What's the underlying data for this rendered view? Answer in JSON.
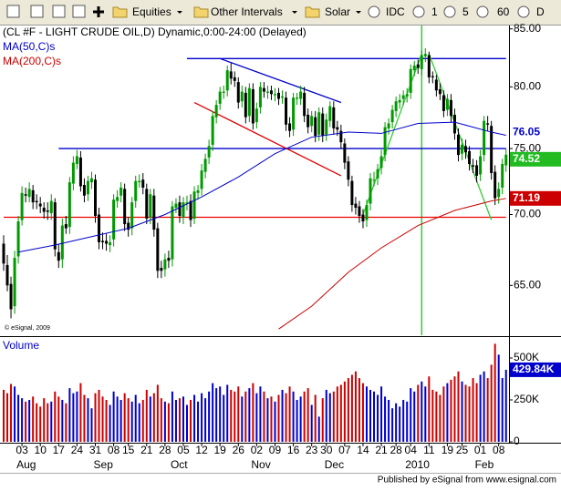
{
  "toolbar": {
    "items": [
      "Equities",
      "Other Intervals",
      "Solar",
      "IDC",
      "1",
      "5",
      "60",
      "D"
    ]
  },
  "footer": "Published by eSignal from www.esignal.com",
  "chart_data": {
    "type": "candlestick",
    "title": "(CL #F - LIGHT CRUDE OIL,D) Dynamic,0:00-24:00 (Delayed)",
    "copyright": "© eSignal, 2009",
    "log": true,
    "grid": false,
    "up_color": "#009900",
    "down_color": "#000000",
    "last_color": "#22bb22",
    "ylim": [
      61.7,
      85.3
    ],
    "yticks": [
      {
        "value": 85,
        "label": "85.00"
      },
      {
        "value": 80,
        "label": "80.00"
      },
      {
        "value": 75,
        "label": "75.00"
      },
      {
        "value": 70,
        "label": "70.00"
      },
      {
        "value": 65,
        "label": "65.00"
      }
    ],
    "categories": [
      null,
      null,
      null,
      null,
      null,
      "03",
      null,
      null,
      null,
      null,
      "10",
      null,
      null,
      null,
      null,
      "17",
      null,
      null,
      null,
      null,
      "24",
      null,
      null,
      null,
      null,
      "31",
      null,
      null,
      null,
      null,
      "08",
      null,
      null,
      null,
      "15",
      null,
      null,
      null,
      null,
      "21",
      null,
      null,
      null,
      null,
      "28",
      null,
      null,
      null,
      null,
      "05",
      null,
      null,
      null,
      null,
      "12",
      null,
      null,
      null,
      null,
      "19",
      null,
      null,
      null,
      null,
      "26",
      null,
      null,
      null,
      null,
      "02",
      null,
      null,
      null,
      null,
      "09",
      null,
      null,
      null,
      null,
      "16",
      null,
      null,
      null,
      null,
      "23",
      null,
      null,
      null,
      "30",
      null,
      null,
      null,
      null,
      "07",
      null,
      null,
      null,
      null,
      "14",
      null,
      null,
      null,
      null,
      "21",
      null,
      null,
      null,
      "28",
      null,
      null,
      null,
      "04",
      null,
      null,
      null,
      null,
      "11",
      null,
      null,
      null,
      null,
      "19",
      null,
      null,
      null,
      "25",
      null,
      null,
      null,
      null,
      "01",
      null,
      null,
      null,
      null,
      "08",
      null,
      null
    ],
    "months": [
      {
        "label": "Aug",
        "index": 5
      },
      {
        "label": "Sep",
        "index": 26
      },
      {
        "label": "Oct",
        "index": 47
      },
      {
        "label": "Nov",
        "index": 69
      },
      {
        "label": "Dec",
        "index": 89
      },
      {
        "label": "2010",
        "index": 111
      },
      {
        "label": "Feb",
        "index": 130
      }
    ],
    "open": [
      67.9,
      66.4,
      65.1,
      63.6,
      67.0,
      69.6,
      71.5,
      71.3,
      71.8,
      71.0,
      70.8,
      70.5,
      70.3,
      70.1,
      70.9,
      67.3,
      66.8,
      69.3,
      69.1,
      72.3,
      73.8,
      74.3,
      72.2,
      71.5,
      72.4,
      72.6,
      70.0,
      68.1,
      68.1,
      67.8,
      68.2,
      71.0,
      71.4,
      71.9,
      69.4,
      69.0,
      71.0,
      72.4,
      72.6,
      71.9,
      69.8,
      71.4,
      69.0,
      66.2,
      66.1,
      66.9,
      66.8,
      70.5,
      70.9,
      69.8,
      70.8,
      71.0,
      69.7,
      71.6,
      71.9,
      73.2,
      74.3,
      75.3,
      77.5,
      78.6,
      79.5,
      79.7,
      81.3,
      80.8,
      80.4,
      78.8,
      79.5,
      77.6,
      79.8,
      77.1,
      78.3,
      79.9,
      79.5,
      79.7,
      79.3,
      79.5,
      79.1,
      79.1,
      77.0,
      76.5,
      79.0,
      79.0,
      79.5,
      77.7,
      76.8,
      77.5,
      76.1,
      77.8,
      76.1,
      77.2,
      78.3,
      76.7,
      76.4,
      75.4,
      74.0,
      72.5,
      70.8,
      70.6,
      70.0,
      69.6,
      70.8,
      72.6,
      72.7,
      73.5,
      74.5,
      76.6,
      77.1,
      78.0,
      78.7,
      79.0,
      79.2,
      79.5,
      81.4,
      81.9,
      81.5,
      82.6,
      82.7,
      80.9,
      80.6,
      79.8,
      79.3,
      78.1,
      78.9,
      77.7,
      76.1,
      74.6,
      75.2,
      74.8,
      73.7,
      73.7,
      73.0,
      74.5,
      77.0,
      76.8,
      73.2,
      71.3,
      72.0,
      73.7
    ],
    "high": [
      68.5,
      67.1,
      65.6,
      67.4,
      69.9,
      72.1,
      72.0,
      72.4,
      72.2,
      71.5,
      71.3,
      70.9,
      70.9,
      71.5,
      71.2,
      67.9,
      69.7,
      69.9,
      72.8,
      74.4,
      74.9,
      74.8,
      72.7,
      72.9,
      73.2,
      73.0,
      70.5,
      68.7,
      68.6,
      68.5,
      71.5,
      71.8,
      72.4,
      72.3,
      69.8,
      71.3,
      72.9,
      73.0,
      73.1,
      72.3,
      71.9,
      71.9,
      69.4,
      66.7,
      67.2,
      67.4,
      71.0,
      71.2,
      71.4,
      71.3,
      71.4,
      71.5,
      72.1,
      72.2,
      73.8,
      74.6,
      75.7,
      78.0,
      78.9,
      80.0,
      80.1,
      81.8,
      82.0,
      81.3,
      80.8,
      80.1,
      80.0,
      80.3,
      80.3,
      78.7,
      80.4,
      80.4,
      80.1,
      80.1,
      79.9,
      79.9,
      79.7,
      79.6,
      77.5,
      79.5,
      79.5,
      80.1,
      80.0,
      78.2,
      78.0,
      78.0,
      78.3,
      78.3,
      77.8,
      78.8,
      78.8,
      77.2,
      76.9,
      75.8,
      74.4,
      72.9,
      71.3,
      71.0,
      70.4,
      71.1,
      73.1,
      73.2,
      73.8,
      74.9,
      77.1,
      77.4,
      78.5,
      79.2,
      79.4,
      79.7,
      79.9,
      81.9,
      82.2,
      82.3,
      83.1,
      83.3,
      83.0,
      81.3,
      81.0,
      80.3,
      79.7,
      79.4,
      79.4,
      78.2,
      76.6,
      75.8,
      75.7,
      75.2,
      74.2,
      74.1,
      74.9,
      77.6,
      77.6,
      77.2,
      73.7,
      72.4,
      74.2,
      75.0
    ],
    "low": [
      66.0,
      64.6,
      62.8,
      63.1,
      66.5,
      69.2,
      70.9,
      70.9,
      70.4,
      70.4,
      70.1,
      69.7,
      69.6,
      69.6,
      67.0,
      66.2,
      66.2,
      68.6,
      68.6,
      71.8,
      73.4,
      71.7,
      70.9,
      71.0,
      71.9,
      69.4,
      67.5,
      67.5,
      67.4,
      67.3,
      67.7,
      70.5,
      70.9,
      68.8,
      68.4,
      68.5,
      70.5,
      72.0,
      71.5,
      69.3,
      69.3,
      68.4,
      65.5,
      65.5,
      65.6,
      66.2,
      66.3,
      70.1,
      69.4,
      69.3,
      70.3,
      69.1,
      69.3,
      71.1,
      71.4,
      72.7,
      73.8,
      74.8,
      77.0,
      78.1,
      79.0,
      79.2,
      80.2,
      80.0,
      78.2,
      78.3,
      77.0,
      77.1,
      76.5,
      76.6,
      77.8,
      79.1,
      79.0,
      78.9,
      78.8,
      78.5,
      78.6,
      76.4,
      75.9,
      76.0,
      78.5,
      78.5,
      77.1,
      76.2,
      76.3,
      75.5,
      75.6,
      75.5,
      75.6,
      76.7,
      76.1,
      76.0,
      75.0,
      73.4,
      72.1,
      70.2,
      70.0,
      69.4,
      69.0,
      69.1,
      70.3,
      72.1,
      72.2,
      73.0,
      74.0,
      76.1,
      76.6,
      77.5,
      78.2,
      78.5,
      78.7,
      79.0,
      80.9,
      81.1,
      81.0,
      82.1,
      80.3,
      80.3,
      79.2,
      78.9,
      77.5,
      77.6,
      77.1,
      75.7,
      74.0,
      74.1,
      74.2,
      73.3,
      73.1,
      72.4,
      72.5,
      74.0,
      76.4,
      72.6,
      70.7,
      70.8,
      71.5,
      73.2
    ],
    "close": [
      66.5,
      65.0,
      63.4,
      66.9,
      69.5,
      71.6,
      71.4,
      71.9,
      70.9,
      70.9,
      70.6,
      70.2,
      70.2,
      71.0,
      67.5,
      66.7,
      69.2,
      69.0,
      72.4,
      73.9,
      74.4,
      72.1,
      71.4,
      72.5,
      72.7,
      69.9,
      68.0,
      68.0,
      67.9,
      68.0,
      71.1,
      71.3,
      72.0,
      69.3,
      68.9,
      70.9,
      72.5,
      72.5,
      72.0,
      69.7,
      71.5,
      68.9,
      66.0,
      66.0,
      66.8,
      66.7,
      70.6,
      70.8,
      69.9,
      70.9,
      70.9,
      69.6,
      71.7,
      71.8,
      73.3,
      74.2,
      75.2,
      77.6,
      78.5,
      79.6,
      79.6,
      81.4,
      80.7,
      80.5,
      78.7,
      79.6,
      77.5,
      79.9,
      77.0,
      78.2,
      80.0,
      79.6,
      79.6,
      79.4,
      79.4,
      79.0,
      79.2,
      76.9,
      76.4,
      79.1,
      79.1,
      79.6,
      77.6,
      76.7,
      77.6,
      76.0,
      77.9,
      76.0,
      77.3,
      78.4,
      76.6,
      76.5,
      75.5,
      73.9,
      72.6,
      70.7,
      70.5,
      69.9,
      69.5,
      70.7,
      72.7,
      72.6,
      73.4,
      74.4,
      76.7,
      77.0,
      78.1,
      78.8,
      78.9,
      79.3,
      79.4,
      81.5,
      81.8,
      81.6,
      82.7,
      82.8,
      80.8,
      80.8,
      79.7,
      79.4,
      78.0,
      79.0,
      77.6,
      76.2,
      74.5,
      75.3,
      74.7,
      73.8,
      73.6,
      72.9,
      74.4,
      77.2,
      76.9,
      73.1,
      71.2,
      71.9,
      73.8,
      74.52
    ],
    "series": [
      {
        "name": "MA(50,C)s",
        "color": "#0000cc",
        "x": [
          4,
          14,
          24,
          34,
          44,
          54,
          64,
          74,
          84,
          94,
          103,
          113,
          123,
          133,
          137
        ],
        "values": [
          67.3,
          67.8,
          68.4,
          69.0,
          70.0,
          71.3,
          72.8,
          74.6,
          75.9,
          76.3,
          76.2,
          77.0,
          77.1,
          76.3,
          76.05
        ]
      },
      {
        "name": "MA(200,C)s",
        "color": "#cc0000",
        "x": [
          75,
          84,
          94,
          103,
          113,
          123,
          133,
          137
        ],
        "values": [
          62.1,
          63.6,
          65.9,
          67.6,
          69.2,
          70.3,
          71.0,
          71.19
        ]
      }
    ],
    "drawings": [
      {
        "color": "#0000cc",
        "x": [
          50,
          137
        ],
        "y": [
          82.4,
          82.4
        ]
      },
      {
        "color": "#0000cc",
        "x": [
          15,
          137
        ],
        "y": [
          75.0,
          75.0
        ]
      },
      {
        "color": "#ee0000",
        "x": [
          0,
          137
        ],
        "y": [
          69.8,
          69.8
        ]
      },
      {
        "color": "#0000cc",
        "x": [
          59,
          92
        ],
        "y": [
          82.4,
          78.7
        ]
      },
      {
        "color": "#dd0000",
        "x": [
          52,
          92
        ],
        "y": [
          78.7,
          72.9
        ]
      },
      {
        "color": "#33cc33",
        "x": [
          98,
          114
        ],
        "y": [
          70.0,
          82.8
        ]
      },
      {
        "color": "#33cc33",
        "x": [
          116,
          133
        ],
        "y": [
          82.8,
          69.6
        ]
      }
    ],
    "vlines": [
      {
        "color": "#33cc33",
        "x": 114
      }
    ],
    "volume": {
      "name": "Volume",
      "up_color": "#0000cc",
      "down_color": "#cc0000",
      "ylim": [
        0,
        625000
      ],
      "yticks": [
        {
          "value": 500000,
          "label": "500K"
        },
        {
          "value": 250000,
          "label": "250K"
        },
        0
      ],
      "current": {
        "value": 429840,
        "label": "429.84K"
      },
      "values": [
        310000,
        290000,
        345000,
        330000,
        280000,
        260000,
        240000,
        250000,
        270000,
        230000,
        210000,
        260000,
        230000,
        240000,
        300000,
        270000,
        250000,
        230000,
        320000,
        290000,
        300000,
        350000,
        280000,
        260000,
        200000,
        290000,
        310000,
        270000,
        250000,
        220000,
        300000,
        270000,
        250000,
        290000,
        260000,
        240000,
        280000,
        230000,
        250000,
        310000,
        270000,
        290000,
        340000,
        260000,
        240000,
        230000,
        300000,
        250000,
        260000,
        270000,
        220000,
        250000,
        280000,
        240000,
        290000,
        260000,
        300000,
        350000,
        320000,
        330000,
        280000,
        340000,
        310000,
        300000,
        330000,
        270000,
        300000,
        320000,
        350000,
        290000,
        330000,
        300000,
        260000,
        270000,
        240000,
        280000,
        310000,
        290000,
        330000,
        300000,
        250000,
        270000,
        300000,
        320000,
        220000,
        280000,
        150000,
        260000,
        310000,
        290000,
        300000,
        330000,
        340000,
        360000,
        380000,
        400000,
        420000,
        380000,
        350000,
        330000,
        310000,
        300000,
        280000,
        330000,
        270000,
        250000,
        200000,
        230000,
        210000,
        250000,
        240000,
        320000,
        300000,
        340000,
        360000,
        330000,
        390000,
        310000,
        300000,
        280000,
        330000,
        350000,
        370000,
        390000,
        420000,
        360000,
        340000,
        330000,
        380000,
        350000,
        400000,
        420000,
        380000,
        460000,
        585000,
        520000,
        380000,
        429840
      ]
    }
  }
}
